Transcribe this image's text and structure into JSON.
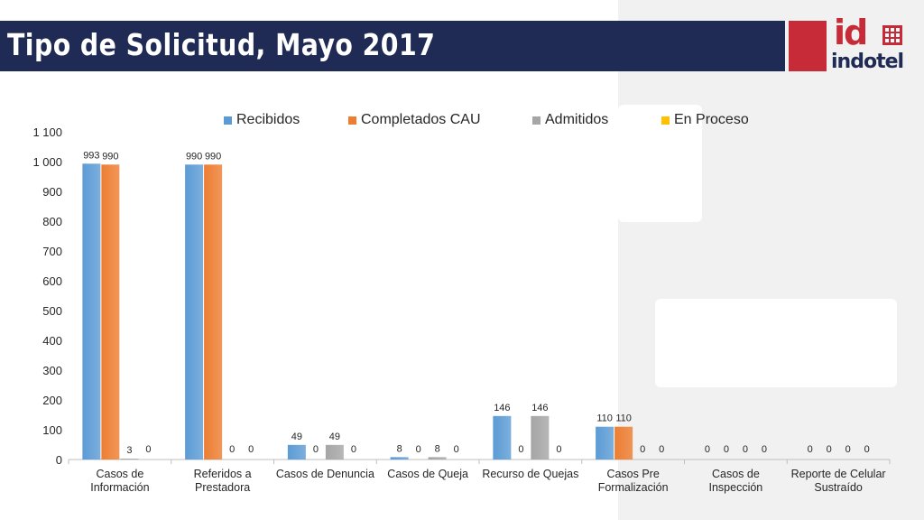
{
  "header": {
    "title": "Tipo de Solicitud, Mayo 2017"
  },
  "logo": {
    "mark": "id",
    "name": "indotel",
    "brand_red": "#c62b37",
    "brand_navy": "#1f2a55"
  },
  "chart_data": {
    "type": "bar",
    "title": "",
    "xlabel": "",
    "ylabel": "",
    "ylim": [
      0,
      1100
    ],
    "yticks": [
      "0",
      "100",
      "200",
      "300",
      "400",
      "500",
      "600",
      "700",
      "800",
      "900",
      "1 000",
      "1 100"
    ],
    "legend_position": "top",
    "grid": false,
    "categories": [
      [
        "Casos de",
        "Información"
      ],
      [
        "Referidos a",
        "Prestadora"
      ],
      [
        "Casos de Denuncia"
      ],
      [
        "Casos de Queja"
      ],
      [
        "Recurso de Quejas"
      ],
      [
        "Casos Pre",
        "Formalización"
      ],
      [
        "Casos de",
        "Inspección"
      ],
      [
        "Reporte de Celular",
        "Sustraído"
      ]
    ],
    "series": [
      {
        "name": "Recibidos",
        "color": "#5b9bd5",
        "values": [
          993,
          990,
          49,
          8,
          146,
          110,
          0,
          0
        ]
      },
      {
        "name": "Completados CAU",
        "color": "#ed7d31",
        "values": [
          990,
          990,
          0,
          0,
          0,
          110,
          0,
          0
        ]
      },
      {
        "name": "Admitidos",
        "color": "#a5a5a5",
        "values": [
          3,
          0,
          49,
          8,
          146,
          0,
          0,
          0
        ]
      },
      {
        "name": "En Proceso",
        "color": "#ffc000",
        "values": [
          0,
          0,
          0,
          0,
          0,
          0,
          0,
          0
        ]
      }
    ]
  }
}
